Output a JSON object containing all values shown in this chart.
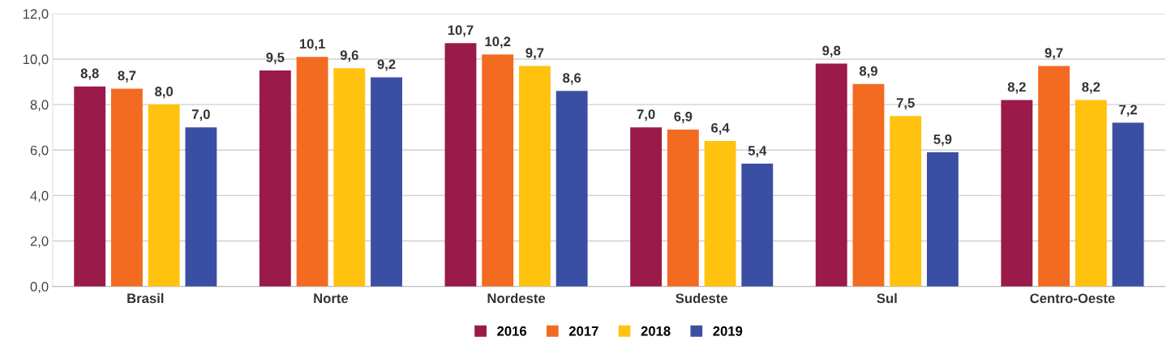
{
  "chart_data": {
    "type": "bar",
    "categories": [
      "Brasil",
      "Norte",
      "Nordeste",
      "Sudeste",
      "Sul",
      "Centro-Oeste"
    ],
    "series": [
      {
        "name": "2016",
        "color": "#9a1a4a",
        "values": [
          8.8,
          9.5,
          10.7,
          7.0,
          9.8,
          8.2
        ],
        "value_labels": [
          "8,8",
          "9,5",
          "10,7",
          "7,0",
          "9,8",
          "8,2"
        ]
      },
      {
        "name": "2017",
        "color": "#f26b21",
        "values": [
          8.7,
          10.1,
          10.2,
          6.9,
          8.9,
          9.7
        ],
        "value_labels": [
          "8,7",
          "10,1",
          "10,2",
          "6,9",
          "8,9",
          "9,7"
        ]
      },
      {
        "name": "2018",
        "color": "#ffc20e",
        "values": [
          8.0,
          9.6,
          9.7,
          6.4,
          7.5,
          8.2
        ],
        "value_labels": [
          "8,0",
          "9,6",
          "9,7",
          "6,4",
          "7,5",
          "8,2"
        ]
      },
      {
        "name": "2019",
        "color": "#3a4fa3",
        "values": [
          7.0,
          9.2,
          8.6,
          5.4,
          5.9,
          7.2
        ],
        "value_labels": [
          "7,0",
          "9,2",
          "8,6",
          "5,4",
          "5,9",
          "7,2"
        ]
      }
    ],
    "ylim": [
      0,
      12
    ],
    "yticks": [
      {
        "value": 0,
        "label": "0,0"
      },
      {
        "value": 2,
        "label": "2,0"
      },
      {
        "value": 4,
        "label": "4,0"
      },
      {
        "value": 6,
        "label": "6,0"
      },
      {
        "value": 8,
        "label": "8,0"
      },
      {
        "value": 10,
        "label": "10,0"
      },
      {
        "value": 12,
        "label": "12,0"
      }
    ],
    "grid": "y",
    "legend": "bottom"
  }
}
